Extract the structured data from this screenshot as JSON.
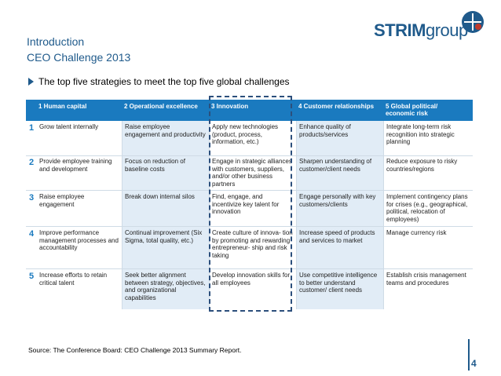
{
  "header": {
    "title": "Introduction",
    "subtitle": "CEO Challenge 2013"
  },
  "logo": {
    "brand_bold": "STRIM",
    "brand_light": "group"
  },
  "bullet": "The top five strategies to meet the top five global challenges",
  "table": {
    "columns": [
      "1 Human capital",
      "2 Operational excellence",
      "3 Innovation",
      "4 Customer relationships",
      "5 Global political/ economic risk"
    ],
    "rows": [
      {
        "num": "1",
        "cells": [
          "Grow talent internally",
          "Raise employee engagement and productivity",
          "Apply new technologies (product, process, information, etc.)",
          "Enhance quality of products/services",
          "Integrate long-term risk recognition into strategic planning"
        ]
      },
      {
        "num": "2",
        "cells": [
          "Provide employee training and development",
          "Focus on reduction of baseline costs",
          "Engage in strategic alliances with customers, suppliers, and/or other business partners",
          "Sharpen understanding of customer/client needs",
          "Reduce exposure to risky countries/regions"
        ]
      },
      {
        "num": "3",
        "cells": [
          "Raise employee engagement",
          "Break down internal silos",
          "Find, engage, and incentivize key talent for innovation",
          "Engage personally with key customers/clients",
          "Implement contingency plans for crises (e.g., geographical, political, relocation of employees)"
        ]
      },
      {
        "num": "4",
        "cells": [
          "Improve performance management processes and accountability",
          "Continual improvement (Six Sigma, total quality, etc.)",
          "Create culture of innova- tion by promoting and rewarding entrepreneur- ship and risk taking",
          "Increase speed of products and services to market",
          "Manage currency risk"
        ]
      },
      {
        "num": "5",
        "cells": [
          "Increase efforts to retain critical talent",
          "Seek better alignment between strategy, objectives, and organizational capabilities",
          "Develop innovation skills for all employees",
          "Use competitive intelligence to better understand customer/ client needs",
          "Establish crisis management teams and procedures"
        ]
      }
    ]
  },
  "source": "Source: The Conference Board: CEO Challenge 2013 Summary Report.",
  "page_number": "4",
  "colors": {
    "brand": "#1f5a8b",
    "table_header": "#1a7abf",
    "shade": "#e1ecf6"
  }
}
